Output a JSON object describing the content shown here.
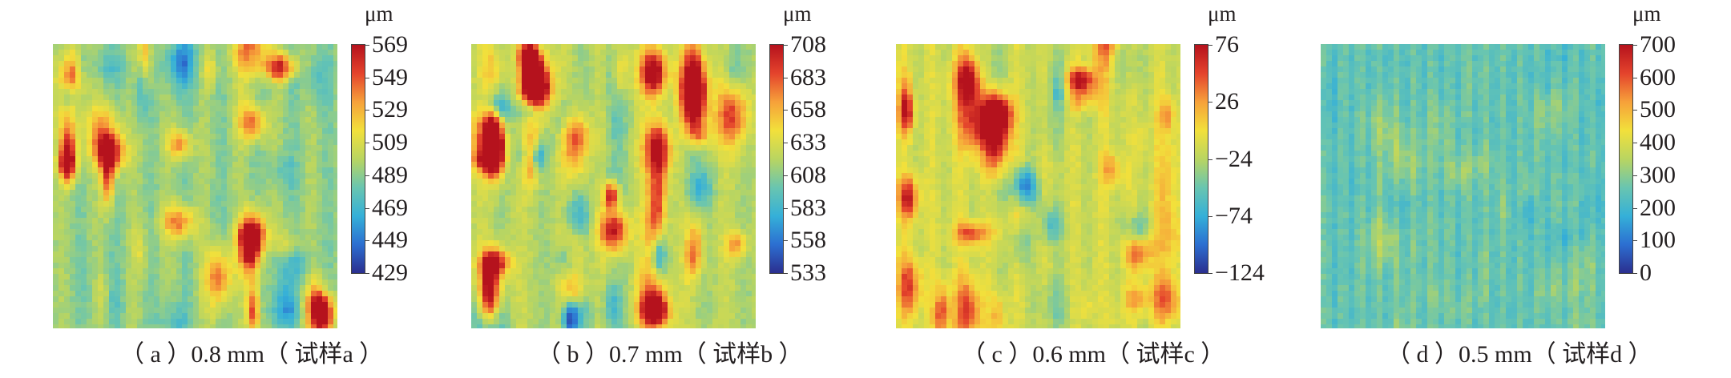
{
  "colorscale": [
    "#2b2f8f",
    "#2c6fd1",
    "#35b0d8",
    "#69c5b0",
    "#b9d561",
    "#f2e03b",
    "#f6a13a",
    "#e4432c",
    "#b5121d"
  ],
  "chart_data": [
    {
      "type": "heatmap",
      "caption": "（ a ）0.8 mm（ 试样a ）",
      "colorbar": {
        "unit": "μm",
        "ticks": [
          "569",
          "549",
          "529",
          "509",
          "489",
          "469",
          "449",
          "429"
        ],
        "min": 429,
        "max": 569
      },
      "texture": {
        "base": 0.45,
        "ridge_count": 8,
        "ridge_strength": 0.35,
        "seed": 3
      }
    },
    {
      "type": "heatmap",
      "caption": "（ b ）0.7 mm（ 试样b ）",
      "colorbar": {
        "unit": "μm",
        "ticks": [
          "708",
          "683",
          "658",
          "633",
          "608",
          "583",
          "558",
          "533"
        ],
        "min": 533,
        "max": 708
      },
      "texture": {
        "base": 0.5,
        "ridge_count": 7,
        "ridge_strength": 0.45,
        "seed": 11
      }
    },
    {
      "type": "heatmap",
      "caption": "（ c ）0.6 mm（ 试样c ）",
      "colorbar": {
        "unit": "μm",
        "ticks": [
          "76",
          "26",
          "−24",
          "−74",
          "−124"
        ],
        "min": -124,
        "max": 76
      },
      "texture": {
        "base": 0.55,
        "ridge_count": 10,
        "ridge_strength": 0.35,
        "seed": 23
      }
    },
    {
      "type": "heatmap",
      "caption": "（ d ）0.5 mm（ 试样d ）",
      "colorbar": {
        "unit": "μm",
        "ticks": [
          "700",
          "600",
          "500",
          "400",
          "300",
          "200",
          "100",
          "0"
        ],
        "min": 0,
        "max": 700
      },
      "texture": {
        "base": 0.36,
        "ridge_count": 16,
        "ridge_strength": 0.08,
        "seed": 41
      }
    }
  ]
}
